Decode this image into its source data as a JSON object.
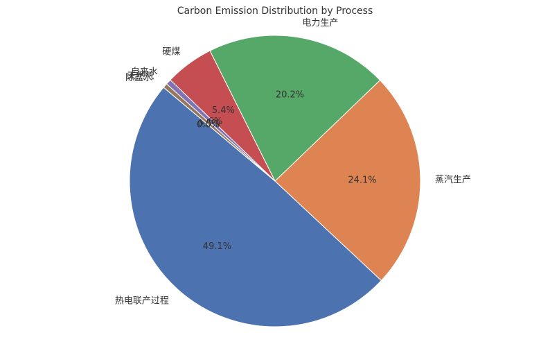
{
  "chart_data": {
    "type": "pie",
    "title": "Carbon Emission Distribution by Process",
    "categories": [
      "热电联产过程",
      "蒸汽生产",
      "电力生产",
      "硬煤",
      "自来水",
      "天然气",
      "除盐水"
    ],
    "values": [
      49.1,
      24.1,
      20.2,
      5.4,
      0.6,
      0.5,
      0.0
    ],
    "value_labels": [
      "49.1%",
      "24.1%",
      "20.2%",
      "5.4%",
      "0.6%",
      "0.5%",
      "0.0%"
    ],
    "colors": [
      "#4c72b0",
      "#dd8452",
      "#55a868",
      "#c44e52",
      "#8172b3",
      "#937860",
      "#da8bc3"
    ]
  }
}
